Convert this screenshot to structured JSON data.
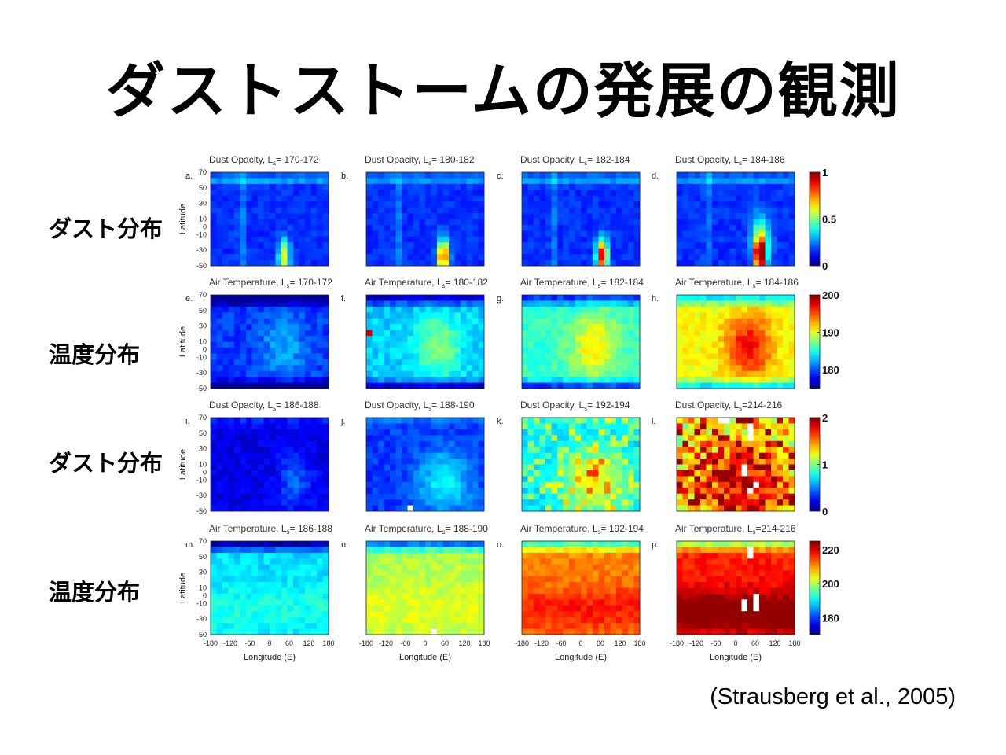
{
  "title": "ダストストームの発展の観測",
  "row_labels": [
    "ダスト分布",
    "温度分布",
    "ダスト分布",
    "温度分布"
  ],
  "citation": "(Strausberg et al., 2005)",
  "chart_data": {
    "type": "heatmap",
    "xlabel": "Longitude (E)",
    "ylabel": "Latitude",
    "x_ticks": [
      "-180",
      "-120",
      "-60",
      "0",
      "60",
      "120",
      "180"
    ],
    "y_ticks": [
      "70",
      "50",
      "30",
      "10",
      "0",
      "-10",
      "-30",
      "-50"
    ],
    "xlim": [
      -180,
      180
    ],
    "ylim": [
      -50,
      70
    ],
    "colorbars": [
      {
        "range": [
          0,
          1
        ],
        "ticks": [
          "1",
          "0.5",
          "0"
        ]
      },
      {
        "range": [
          175,
          200
        ],
        "ticks": [
          "200",
          "190",
          "180"
        ]
      },
      {
        "range": [
          0,
          2
        ],
        "ticks": [
          "2",
          "1",
          "0"
        ]
      },
      {
        "range": [
          170,
          225
        ],
        "ticks": [
          "220",
          "200",
          "180"
        ]
      }
    ],
    "panels": [
      {
        "letter": "a.",
        "title_prefix": "Dust Opacity, L",
        "title_suffix": "= 170-172",
        "row": 0,
        "col": 0
      },
      {
        "letter": "b.",
        "title_prefix": "Dust Opacity, L",
        "title_suffix": "= 180-182",
        "row": 0,
        "col": 1
      },
      {
        "letter": "c.",
        "title_prefix": "Dust Opacity, L",
        "title_suffix": "= 182-184",
        "row": 0,
        "col": 2
      },
      {
        "letter": "d.",
        "title_prefix": "Dust Opacity, L",
        "title_suffix": "= 184-186",
        "row": 0,
        "col": 3
      },
      {
        "letter": "e.",
        "title_prefix": "Air Temperature, L",
        "title_suffix": "= 170-172",
        "row": 1,
        "col": 0
      },
      {
        "letter": "f.",
        "title_prefix": "Air Temperature, L",
        "title_suffix": "= 180-182",
        "row": 1,
        "col": 1
      },
      {
        "letter": "g.",
        "title_prefix": "Air Temperature, L",
        "title_suffix": "= 182-184",
        "row": 1,
        "col": 2
      },
      {
        "letter": "h.",
        "title_prefix": "Air Temperature, L",
        "title_suffix": "= 184-186",
        "row": 1,
        "col": 3
      },
      {
        "letter": "i.",
        "title_prefix": "Dust Opacity, L",
        "title_suffix": "= 186-188",
        "row": 2,
        "col": 0
      },
      {
        "letter": "j.",
        "title_prefix": "Dust Opacity, L",
        "title_suffix": "= 188-190",
        "row": 2,
        "col": 1
      },
      {
        "letter": "k.",
        "title_prefix": "Dust Opacity, L",
        "title_suffix": "= 192-194",
        "row": 2,
        "col": 2
      },
      {
        "letter": "l.",
        "title_prefix": "Dust Opacity, L",
        "title_suffix": "=214-216",
        "row": 2,
        "col": 3
      },
      {
        "letter": "m.",
        "title_prefix": "Air Temperature, L",
        "title_suffix": "= 186-188",
        "row": 3,
        "col": 0
      },
      {
        "letter": "n.",
        "title_prefix": "Air Temperature, L",
        "title_suffix": "= 188-190",
        "row": 3,
        "col": 1
      },
      {
        "letter": "o.",
        "title_prefix": "Air Temperature, L",
        "title_suffix": "= 192-194",
        "row": 3,
        "col": 2
      },
      {
        "letter": "p.",
        "title_prefix": "Air Temperature, L",
        "title_suffix": "=214-216",
        "row": 3,
        "col": 3
      }
    ],
    "title_subscript": "s"
  }
}
